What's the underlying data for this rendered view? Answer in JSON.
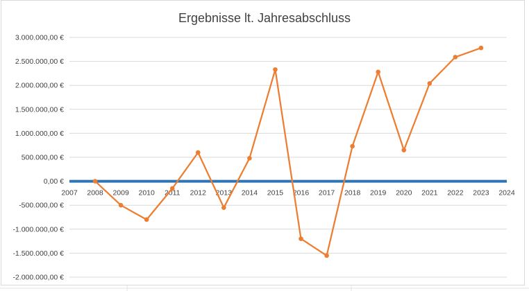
{
  "chart_data": {
    "type": "line",
    "title": "Ergebnisse lt. Jahresabschluss",
    "xlabel": "",
    "ylabel": "",
    "x": [
      2008,
      2009,
      2010,
      2011,
      2012,
      2013,
      2014,
      2015,
      2016,
      2017,
      2018,
      2019,
      2020,
      2021,
      2022,
      2023
    ],
    "series": [
      {
        "values": [
          0,
          -500000,
          -800000,
          -150000,
          600000,
          -550000,
          480000,
          2330000,
          -1200000,
          -1550000,
          730000,
          2280000,
          650000,
          2040000,
          2590000,
          2780000
        ],
        "color": "#ed7d31"
      }
    ],
    "xlim": [
      2007,
      2024
    ],
    "ylim": [
      -2000000,
      3000000
    ],
    "x_ticks": [
      "2007",
      "2008",
      "2009",
      "2010",
      "2011",
      "2012",
      "2013",
      "2014",
      "2015",
      "2016",
      "2017",
      "2018",
      "2019",
      "2020",
      "2021",
      "2022",
      "2023",
      "2024"
    ],
    "y_ticks": [
      {
        "value": 3000000,
        "label": "3.000.000,00 €"
      },
      {
        "value": 2500000,
        "label": "2.500.000,00 €"
      },
      {
        "value": 2000000,
        "label": "2.000.000,00 €"
      },
      {
        "value": 1500000,
        "label": "1.500.000,00 €"
      },
      {
        "value": 1000000,
        "label": "1.000.000,00 €"
      },
      {
        "value": 500000,
        "label": "500.000,00 €"
      },
      {
        "value": 0,
        "label": "0,00 €"
      },
      {
        "value": -500000,
        "label": "-500.000,00 €"
      },
      {
        "value": -1000000,
        "label": "-1.000.000,00 €"
      },
      {
        "value": -1500000,
        "label": "-1.500.000,00 €"
      },
      {
        "value": -2000000,
        "label": "-2.000.000,00 €"
      }
    ],
    "grid": true,
    "zero_axis_color": "#2e75b6",
    "gridline_color": "#d9d9d9"
  }
}
